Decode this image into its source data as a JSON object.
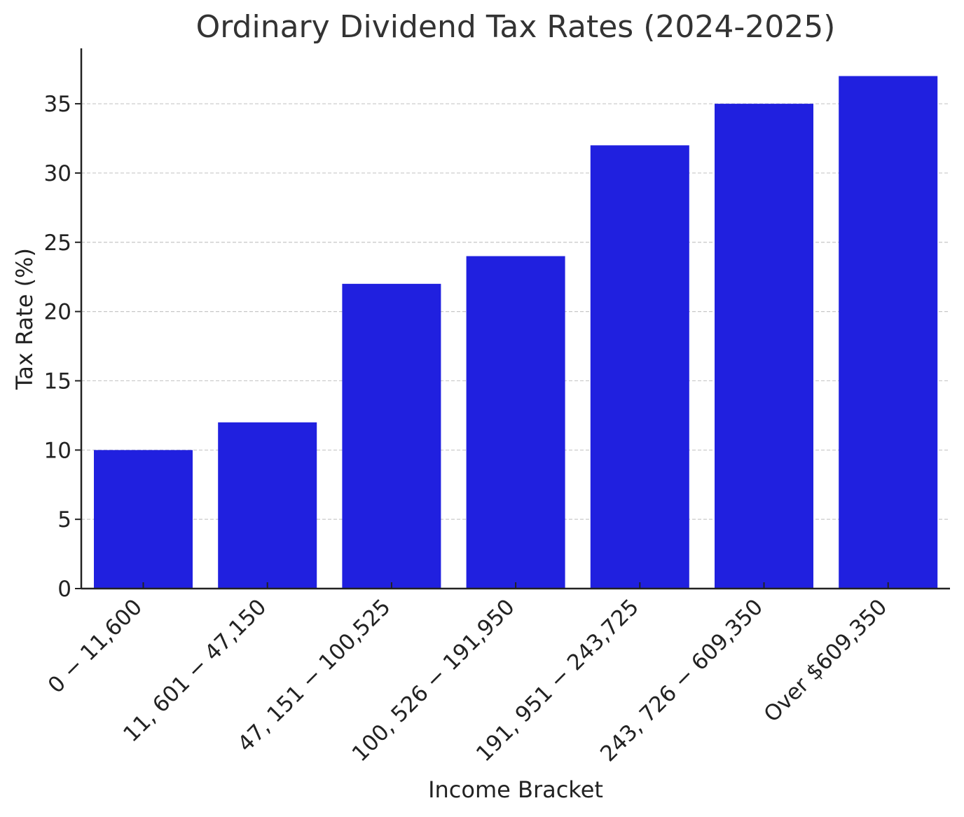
{
  "chart_data": {
    "type": "bar",
    "title": "Ordinary Dividend Tax Rates (2024-2025)",
    "xlabel": "Income Bracket",
    "ylabel": "Tax Rate (%)",
    "categories": [
      "0 − 11,600",
      "11, 601 − 47,150",
      "47, 151 − 100,525",
      "100, 526 − 191,950",
      "191, 951 − 243,725",
      "243, 726 − 609,350",
      "Over $609,350"
    ],
    "values": [
      10,
      12,
      22,
      24,
      32,
      35,
      37
    ],
    "ylim": [
      0,
      39
    ],
    "yticks": [
      0,
      5,
      10,
      15,
      20,
      25,
      30,
      35
    ],
    "grid": "y-dashed",
    "bar_color": "#2020df",
    "legend": "none"
  }
}
